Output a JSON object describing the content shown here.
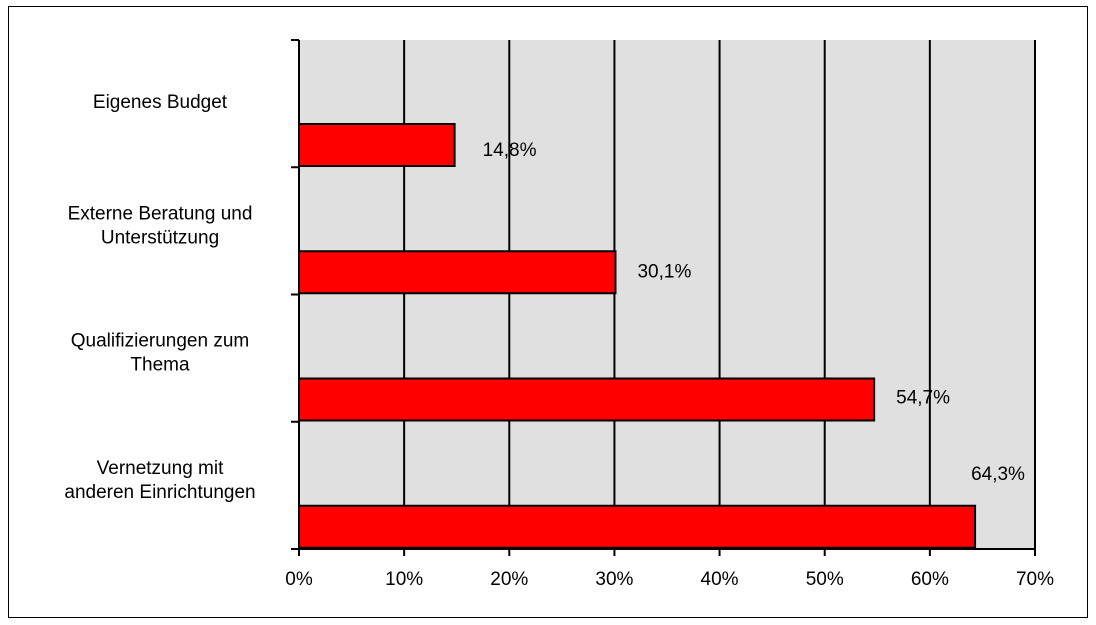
{
  "chart_data": {
    "type": "bar",
    "orientation": "horizontal",
    "categories": [
      [
        "Eigenes Budget"
      ],
      [
        "Externe Beratung und",
        "Unterstützung"
      ],
      [
        "Qualifizierungen zum",
        "Thema"
      ],
      [
        "Vernetzung mit",
        "anderen Einrichtungen"
      ]
    ],
    "values": [
      14.8,
      30.1,
      54.7,
      64.3
    ],
    "data_labels": [
      "14,8%",
      "30,1%",
      "54,7%",
      "64,3%"
    ],
    "xlim": [
      0,
      70
    ],
    "x_ticks": [
      "0%",
      "10%",
      "20%",
      "30%",
      "40%",
      "50%",
      "60%",
      "70%"
    ],
    "title": "",
    "xlabel": "",
    "ylabel": "",
    "grid": true,
    "legend": false,
    "colors": {
      "bar": "#ff0000",
      "plot_background": "#e0e0e0",
      "gridline": "#000000"
    }
  }
}
